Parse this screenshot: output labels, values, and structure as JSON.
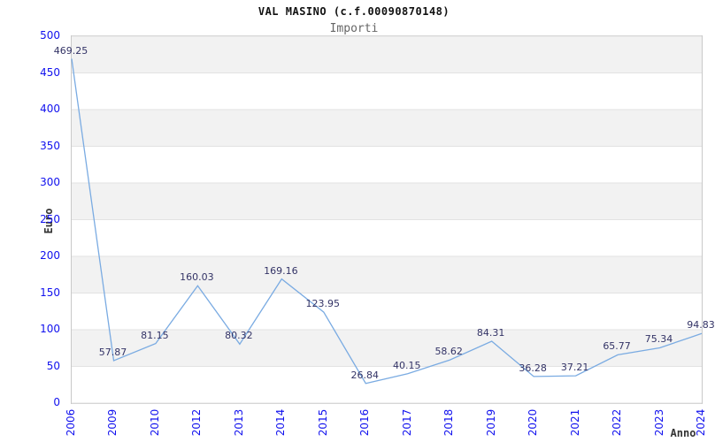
{
  "header": {
    "title": "VAL MASINO (c.f.00090870148)",
    "subtitle": "Importi"
  },
  "chart_data": {
    "type": "line",
    "title": "VAL MASINO (c.f.00090870148)",
    "subtitle": "Importi",
    "categories": [
      "2006",
      "2009",
      "2010",
      "2012",
      "2013",
      "2014",
      "2015",
      "2016",
      "2017",
      "2018",
      "2019",
      "2020",
      "2021",
      "2022",
      "2023",
      "2024"
    ],
    "values": [
      469.25,
      57.87,
      81.15,
      160.03,
      80.32,
      169.16,
      123.95,
      26.84,
      40.15,
      58.62,
      84.31,
      36.28,
      37.21,
      65.77,
      75.34,
      94.83
    ],
    "xlabel": "Anno",
    "ylabel": "Euro",
    "ylim": [
      0,
      500
    ],
    "ytick_step": 50,
    "grid": true,
    "legend": "none",
    "data_labels_decimals": 2,
    "colors": {
      "line": "#7aabe2",
      "tick_label": "#1111ee",
      "data_label": "#333366",
      "band": "#f2f2f2",
      "gridline": "#e2e2e2",
      "frame": "#c9c9c9",
      "title": "#111111",
      "subtitle": "#666666",
      "axis_title": "#333333"
    }
  }
}
